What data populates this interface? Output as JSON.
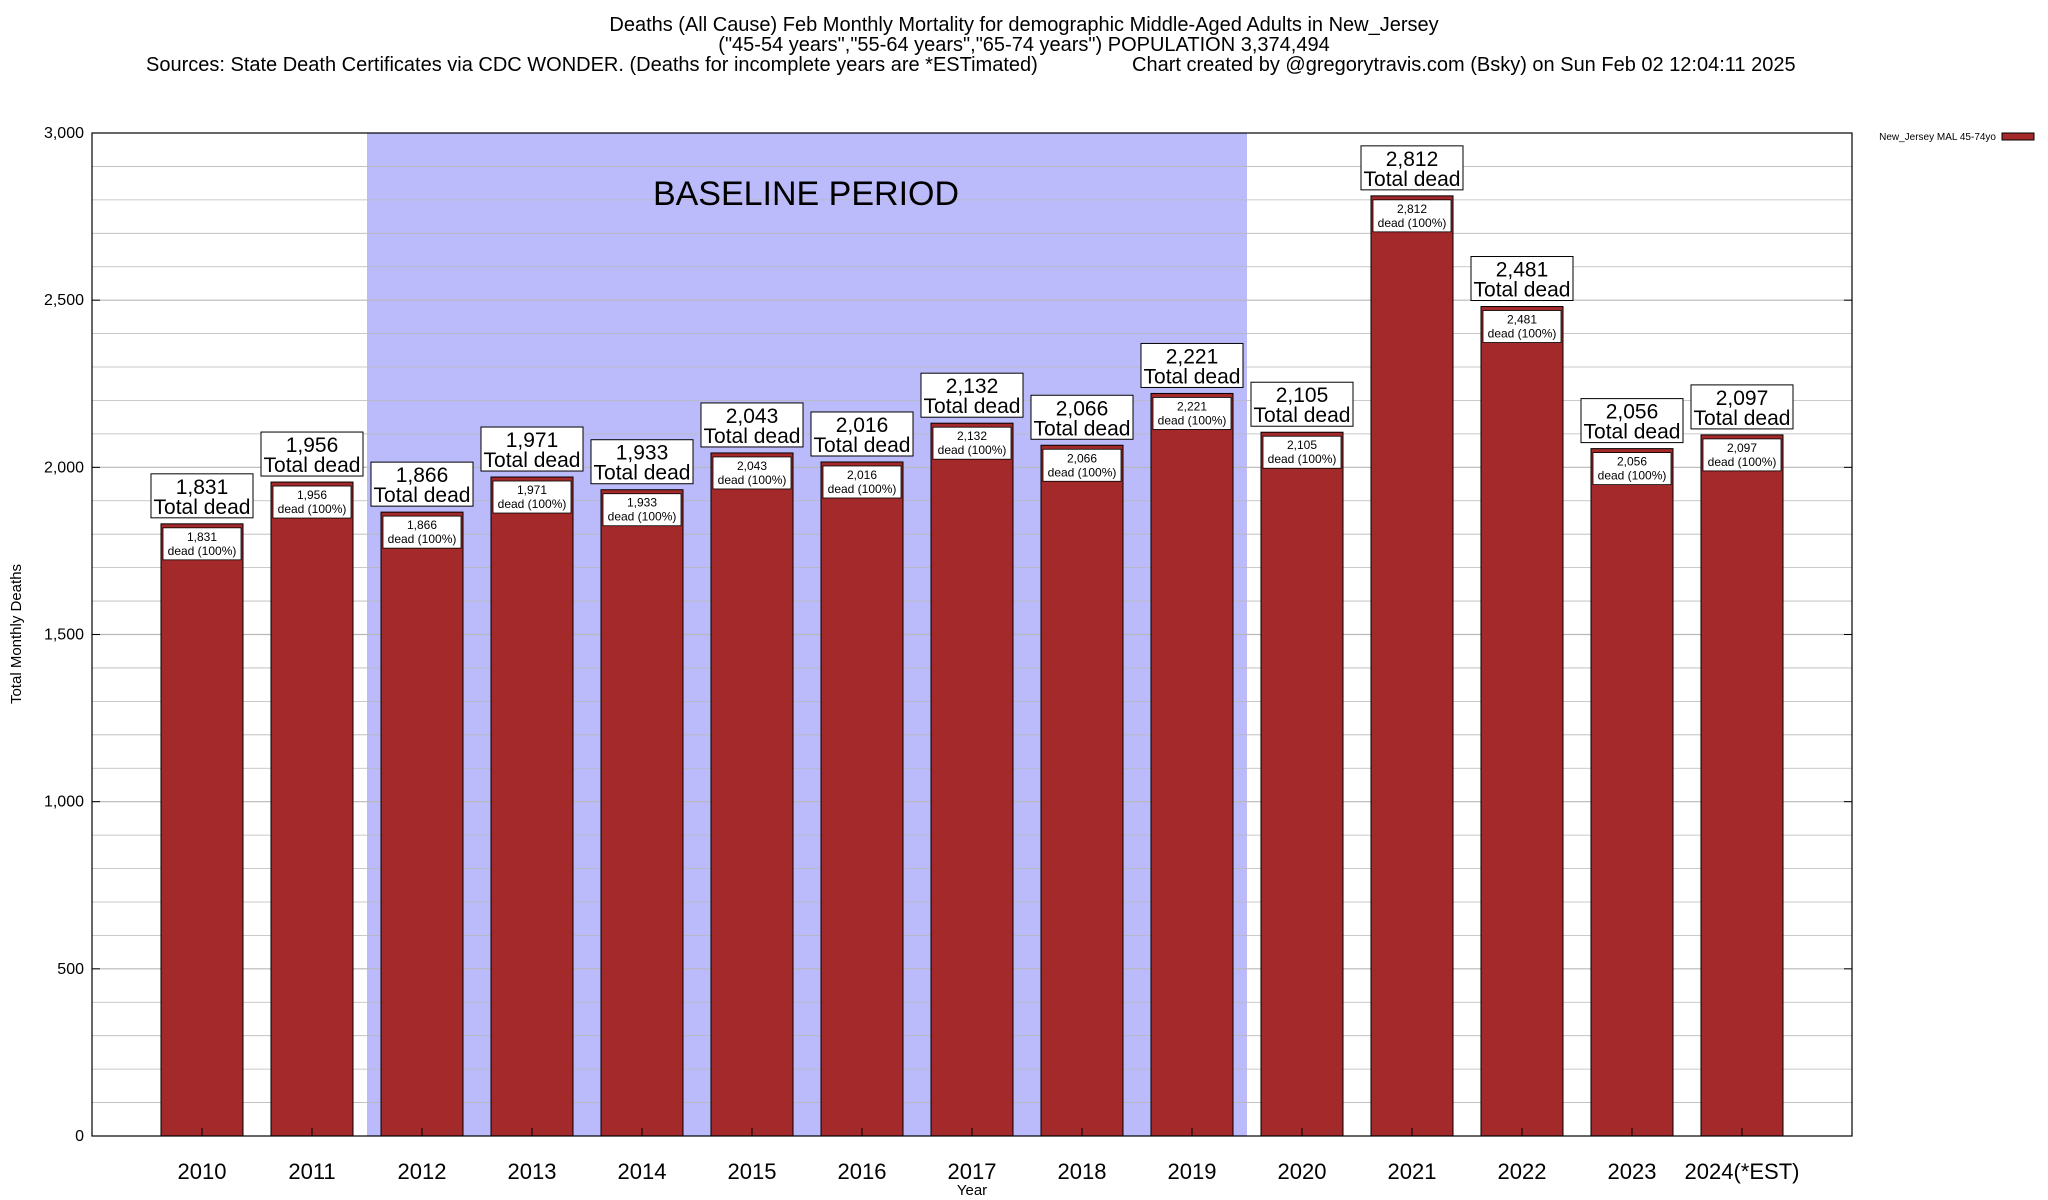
{
  "title": {
    "line1": "Deaths (All Cause) Feb Monthly Mortality for demographic Middle-Aged Adults in New_Jersey",
    "line2": "(\"45-54 years\",\"55-64 years\",\"65-74 years\") POPULATION 3,374,494",
    "line3a": "Sources: State Death Certificates via CDC WONDER. (Deaths for incomplete years are *ESTimated)",
    "line3b": "Chart created by @gregorytravis.com (Bsky) on Sun Feb 02 12:04:11 2025"
  },
  "baseline_label": "BASELINE PERIOD",
  "legend_label": "New_Jersey MAL 45-74yo",
  "big_label_suffix": "Total dead",
  "small_label_suffix": "dead (100%)",
  "colors": {
    "bar": "#a4292a",
    "baseline_band": "#bbbbfc",
    "grid": "#b8b8b8"
  },
  "chart_data": {
    "type": "bar",
    "xlabel": "Year",
    "ylabel": "Total Monthly Deaths",
    "ylim": [
      0,
      3000
    ],
    "yticks": [
      0,
      500,
      1000,
      1500,
      2000,
      2500,
      3000
    ],
    "ytick_labels": [
      "0",
      "500",
      "1,000",
      "1,500",
      "2,000",
      "2,500",
      "3,000"
    ],
    "categories": [
      "2010",
      "2011",
      "2012",
      "2013",
      "2014",
      "2015",
      "2016",
      "2017",
      "2018",
      "2019",
      "2020",
      "2021",
      "2022",
      "2023",
      "2024(*EST)"
    ],
    "series": [
      {
        "name": "New_Jersey MAL 45-74yo",
        "values": [
          1831,
          1956,
          1866,
          1971,
          1933,
          2043,
          2016,
          2132,
          2066,
          2221,
          2105,
          2812,
          2481,
          2056,
          2097
        ]
      }
    ],
    "value_labels": [
      "1,831",
      "1,956",
      "1,866",
      "1,971",
      "1,933",
      "2,043",
      "2,016",
      "2,132",
      "2,066",
      "2,221",
      "2,105",
      "2,812",
      "2,481",
      "2,056",
      "2,097"
    ],
    "baseline_period": [
      "2012",
      "2019"
    ],
    "grid": true,
    "legend_position": "top-right"
  }
}
